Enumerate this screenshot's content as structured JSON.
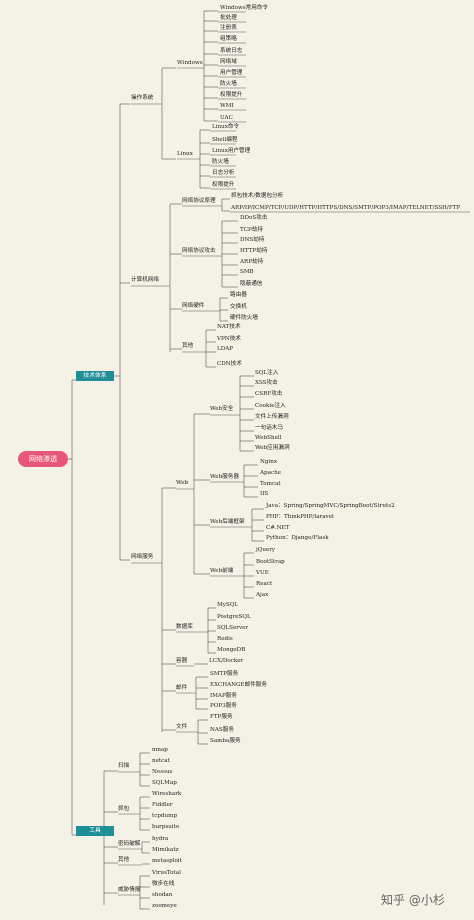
{
  "root": "网络渗透",
  "watermark": "知乎 @小杉",
  "categories": {
    "tech": "技术体系",
    "tools": "工具"
  },
  "tech": {
    "os": {
      "label": "操作系统",
      "windows": {
        "label": "Windows",
        "items": [
          "Windows常用命令",
          "批处理",
          "注册表",
          "组策略",
          "系统日志",
          "网络域",
          "用户管理",
          "防火墙",
          "权限提升",
          "WMI",
          "UAC"
        ]
      },
      "linux": {
        "label": "Linux",
        "items": [
          "Linux命令",
          "Shell编程",
          "Linux用户管理",
          "防火墙",
          "日志分析",
          "权限提升"
        ]
      }
    },
    "network": {
      "label": "计算机网络",
      "principles": {
        "label": "网络协议原理",
        "items": [
          "抓包技术/数据包分析",
          "ARP/IP/ICMP/TCP/UDP/HTTP/HTTPS/DNS/SMTP/POP3/IMAP/TELNET/SSH/FTP"
        ]
      },
      "attacks": {
        "label": "网络协议攻击",
        "items": [
          "DDoS攻击",
          "TCP劫持",
          "DNS劫持",
          "HTTP劫持",
          "ARP劫持",
          "SMB",
          "隐蔽通信"
        ]
      },
      "hardware": {
        "label": "网络硬件",
        "items": [
          "路由器",
          "交换机",
          "硬件防火墙"
        ]
      },
      "other": {
        "label": "其他",
        "items": [
          "NAT技术",
          "VPN技术",
          "LDAP",
          "CDN技术"
        ]
      }
    },
    "services": {
      "label": "网络服务",
      "web": {
        "label": "Web",
        "security": {
          "label": "Web安全",
          "items": [
            "SQL注入",
            "XSS攻击",
            "CSRF攻击",
            "Cookie注入",
            "文件上传漏洞",
            "一句话木马",
            "WebShell",
            "Web应用漏洞"
          ]
        },
        "servers": {
          "label": "Web服务器",
          "items": [
            "Nginx",
            "Apache",
            "Tomcat",
            "IIS"
          ]
        },
        "backend": {
          "label": "Web后端框架",
          "items": [
            "Java：Spring/SpringMVC/SpringBoot/Struts2",
            "PHP：ThinkPHP/laravel",
            "C#.NET",
            "Python：Django/Flask"
          ]
        },
        "frontend": {
          "label": "Web前端",
          "items": [
            "jQuery",
            "BootStrap",
            "VUE",
            "React",
            "Ajax"
          ]
        }
      },
      "database": {
        "label": "数据库",
        "items": [
          "MySQL",
          "PostgreSQL",
          "SQLServer",
          "Redis",
          "MongoDB"
        ]
      },
      "container": {
        "label": "容器",
        "items": [
          "LCX/Docker"
        ]
      },
      "mail": {
        "label": "邮件",
        "items": [
          "SMTP服务",
          "EXCHANGE邮件服务",
          "IMAP服务",
          "POP3服务"
        ]
      },
      "file": {
        "label": "文件",
        "items": [
          "FTP服务",
          "NAS服务",
          "Samba服务"
        ]
      }
    }
  },
  "tools": {
    "scan": {
      "label": "扫描",
      "items": [
        "nmap",
        "netcat",
        "Nessus",
        "SQLMap"
      ]
    },
    "capture": {
      "label": "抓包",
      "items": [
        "Wireshark",
        "Fiddler",
        "tcpdump",
        "burpsuite"
      ]
    },
    "crack": {
      "label": "密码破解",
      "items": [
        "hydra",
        "Mimikatz"
      ]
    },
    "other": {
      "label": "其他",
      "items": [
        "metasploit"
      ]
    },
    "intel": {
      "label": "威胁情报",
      "items": [
        "VirusTotal",
        "微步在线",
        "shodan",
        "zoomeye"
      ]
    }
  }
}
